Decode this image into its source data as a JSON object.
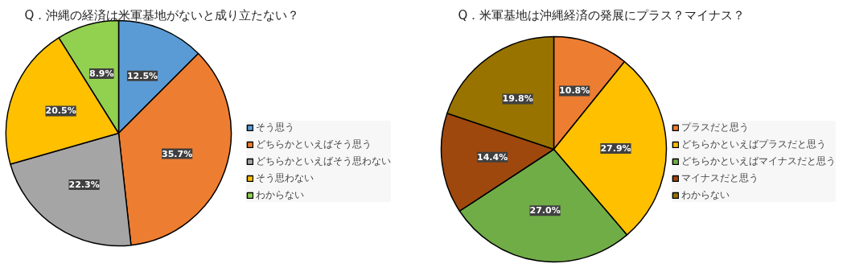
{
  "chart_data": [
    {
      "type": "pie",
      "title": "Q．沖縄の経済は米軍基地がないと成り立たない？",
      "categories": [
        "そう思う",
        "どちらかといえばそう思う",
        "どちらかといえばそう思わない",
        "そう思わない",
        "わからない"
      ],
      "values": [
        12.5,
        35.7,
        22.3,
        20.5,
        8.9
      ],
      "value_labels": [
        "12.5%",
        "35.7%",
        "22.3%",
        "20.5%",
        "8.9%"
      ],
      "colors": [
        "#5b9bd5",
        "#ed7d31",
        "#a5a5a5",
        "#ffc000",
        "#92d050"
      ],
      "legend": "right"
    },
    {
      "type": "pie",
      "title": "Q．米軍基地は沖縄経済の発展にプラス？マイナス？",
      "categories": [
        "プラスだと思う",
        "どちらかといえばプラスだと思う",
        "どちらかといえばマイナスだと思う",
        "マイナスだと思う",
        "わからない"
      ],
      "values": [
        10.8,
        27.9,
        27.0,
        14.4,
        19.8
      ],
      "value_labels": [
        "10.8%",
        "27.9%",
        "27.0%",
        "14.4%",
        "19.8%"
      ],
      "colors": [
        "#ed7d31",
        "#ffc000",
        "#70ad47",
        "#9e480e",
        "#997300"
      ],
      "legend": "right"
    }
  ]
}
